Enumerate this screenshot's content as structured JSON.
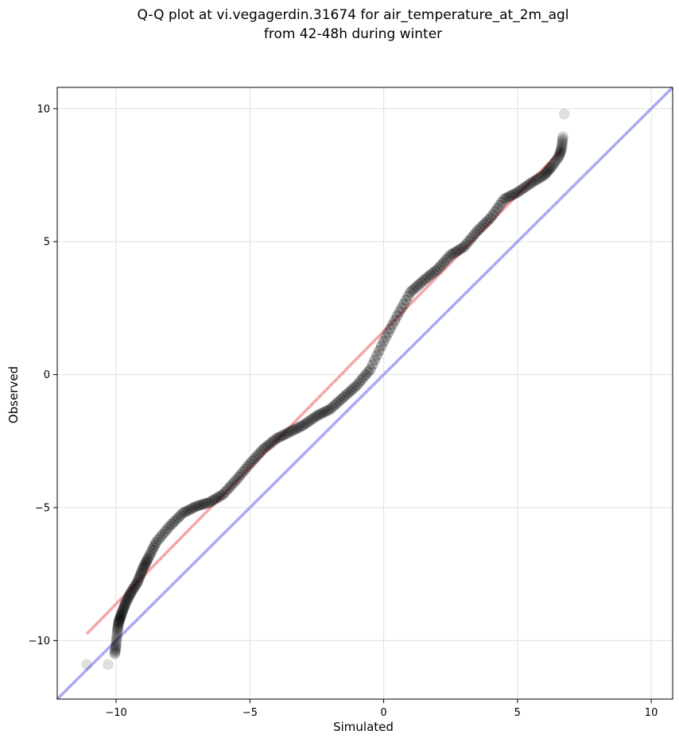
{
  "chart_data": {
    "type": "scatter",
    "title": "Q-Q plot at vi.vegagerdin.31674 for air_temperature_at_2m_agl",
    "subtitle": "from 42-48h during winter",
    "xlabel": "Simulated",
    "ylabel": "Observed",
    "xlim": [
      -12.2,
      10.8
    ],
    "ylim": [
      -12.2,
      10.8
    ],
    "grid": true,
    "x_ticks": [
      -10,
      -5,
      0,
      5,
      10
    ],
    "y_ticks": [
      -10,
      -5,
      0,
      5,
      10
    ],
    "x_tick_labels": [
      "−10",
      "−5",
      "0",
      "5",
      "10"
    ],
    "y_tick_labels": [
      "−10",
      "−5",
      "0",
      "5",
      "10"
    ],
    "quantile_curve": [
      [
        -11.1,
        -10.9
      ],
      [
        -10.3,
        -10.9
      ],
      [
        -10.05,
        -10.5
      ],
      [
        -10.0,
        -10.15
      ],
      [
        -9.95,
        -9.6
      ],
      [
        -9.9,
        -9.3
      ],
      [
        -9.8,
        -9.0
      ],
      [
        -9.65,
        -8.6
      ],
      [
        -9.45,
        -8.2
      ],
      [
        -9.2,
        -7.8
      ],
      [
        -9.0,
        -7.3
      ],
      [
        -8.8,
        -6.9
      ],
      [
        -8.5,
        -6.3
      ],
      [
        -8.0,
        -5.7
      ],
      [
        -7.5,
        -5.2
      ],
      [
        -7.0,
        -4.95
      ],
      [
        -6.5,
        -4.8
      ],
      [
        -6.0,
        -4.5
      ],
      [
        -5.5,
        -3.95
      ],
      [
        -5.0,
        -3.35
      ],
      [
        -4.5,
        -2.8
      ],
      [
        -4.0,
        -2.4
      ],
      [
        -3.5,
        -2.15
      ],
      [
        -3.0,
        -1.9
      ],
      [
        -2.5,
        -1.55
      ],
      [
        -2.0,
        -1.3
      ],
      [
        -1.5,
        -0.85
      ],
      [
        -1.0,
        -0.4
      ],
      [
        -0.5,
        0.2
      ],
      [
        0.0,
        1.25
      ],
      [
        0.5,
        2.2
      ],
      [
        1.0,
        3.1
      ],
      [
        1.5,
        3.55
      ],
      [
        2.0,
        3.95
      ],
      [
        2.5,
        4.5
      ],
      [
        3.0,
        4.8
      ],
      [
        3.5,
        5.4
      ],
      [
        4.0,
        5.9
      ],
      [
        4.5,
        6.6
      ],
      [
        5.0,
        6.85
      ],
      [
        5.5,
        7.2
      ],
      [
        6.0,
        7.5
      ],
      [
        6.3,
        7.85
      ],
      [
        6.55,
        8.2
      ],
      [
        6.65,
        8.5
      ],
      [
        6.7,
        8.95
      ],
      [
        6.75,
        9.8
      ]
    ],
    "point_color": "#000000",
    "fit_line": {
      "x": [
        -11.1,
        6.7
      ],
      "y": [
        -9.75,
        8.5
      ],
      "color": "#f08080"
    },
    "identity_line": {
      "x": [
        -12.2,
        10.8
      ],
      "y": [
        -12.2,
        10.8
      ],
      "color": "#8c8cf0"
    }
  }
}
